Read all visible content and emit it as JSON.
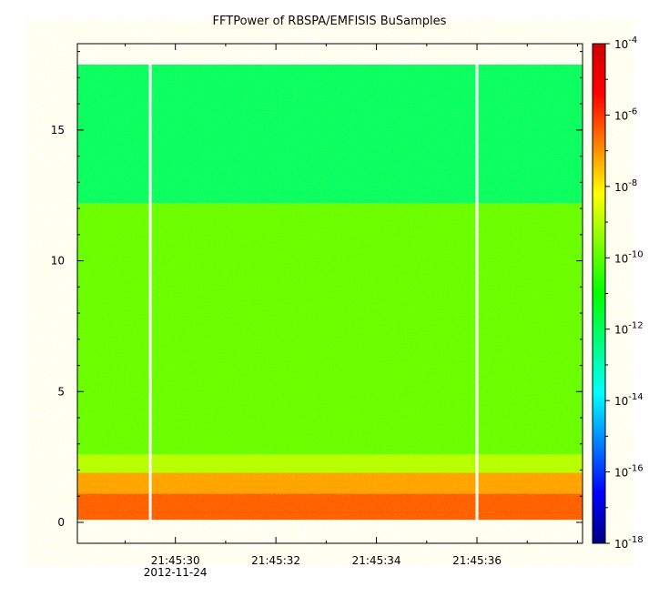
{
  "chart_data": {
    "type": "heatmap",
    "title": "FFTPower of RBSPA/EMFISIS  BuSamples",
    "xlabel": "",
    "ylabel": "",
    "x_ticks": [
      "21:45:30",
      "21:45:32",
      "21:45:34",
      "21:45:36"
    ],
    "x_date_label": "2012-11-24",
    "xlim_seconds": [
      28.05,
      38.1
    ],
    "y_ticks": [
      0,
      5,
      10,
      15
    ],
    "ylim": [
      -0.8,
      18.3
    ],
    "colorbar": {
      "scale": "log",
      "range": [
        1e-18,
        0.0001
      ],
      "tick_bases": [
        "10",
        "10",
        "10",
        "10",
        "10",
        "10",
        "10",
        "10"
      ],
      "tick_exponents": [
        "-4",
        "-6",
        "-8",
        "-10",
        "-12",
        "-14",
        "-16",
        "-18"
      ],
      "colors": [
        "#00007f",
        "#0000ff",
        "#007fff",
        "#00ffff",
        "#00ff7f",
        "#00ff00",
        "#7fff00",
        "#ffff00",
        "#ff7f00",
        "#ff0000",
        "#d00000"
      ]
    },
    "data_gaps_seconds": [
      29.5,
      36.0
    ],
    "regions": [
      {
        "y_range": [
          0.1,
          1.1
        ],
        "log10_power": -7.5,
        "color": "#ff5a00"
      },
      {
        "y_range": [
          1.1,
          1.9
        ],
        "log10_power": -8.5,
        "color": "#ffa000"
      },
      {
        "y_range": [
          1.9,
          2.6
        ],
        "log10_power": -9.5,
        "color": "#b4ff00"
      },
      {
        "y_range": [
          2.6,
          12.2
        ],
        "log10_power": -10.5,
        "color": "#64ff00"
      },
      {
        "y_range": [
          12.2,
          17.5
        ],
        "log10_power": -11.5,
        "color": "#00ff66"
      }
    ],
    "grid": false
  }
}
